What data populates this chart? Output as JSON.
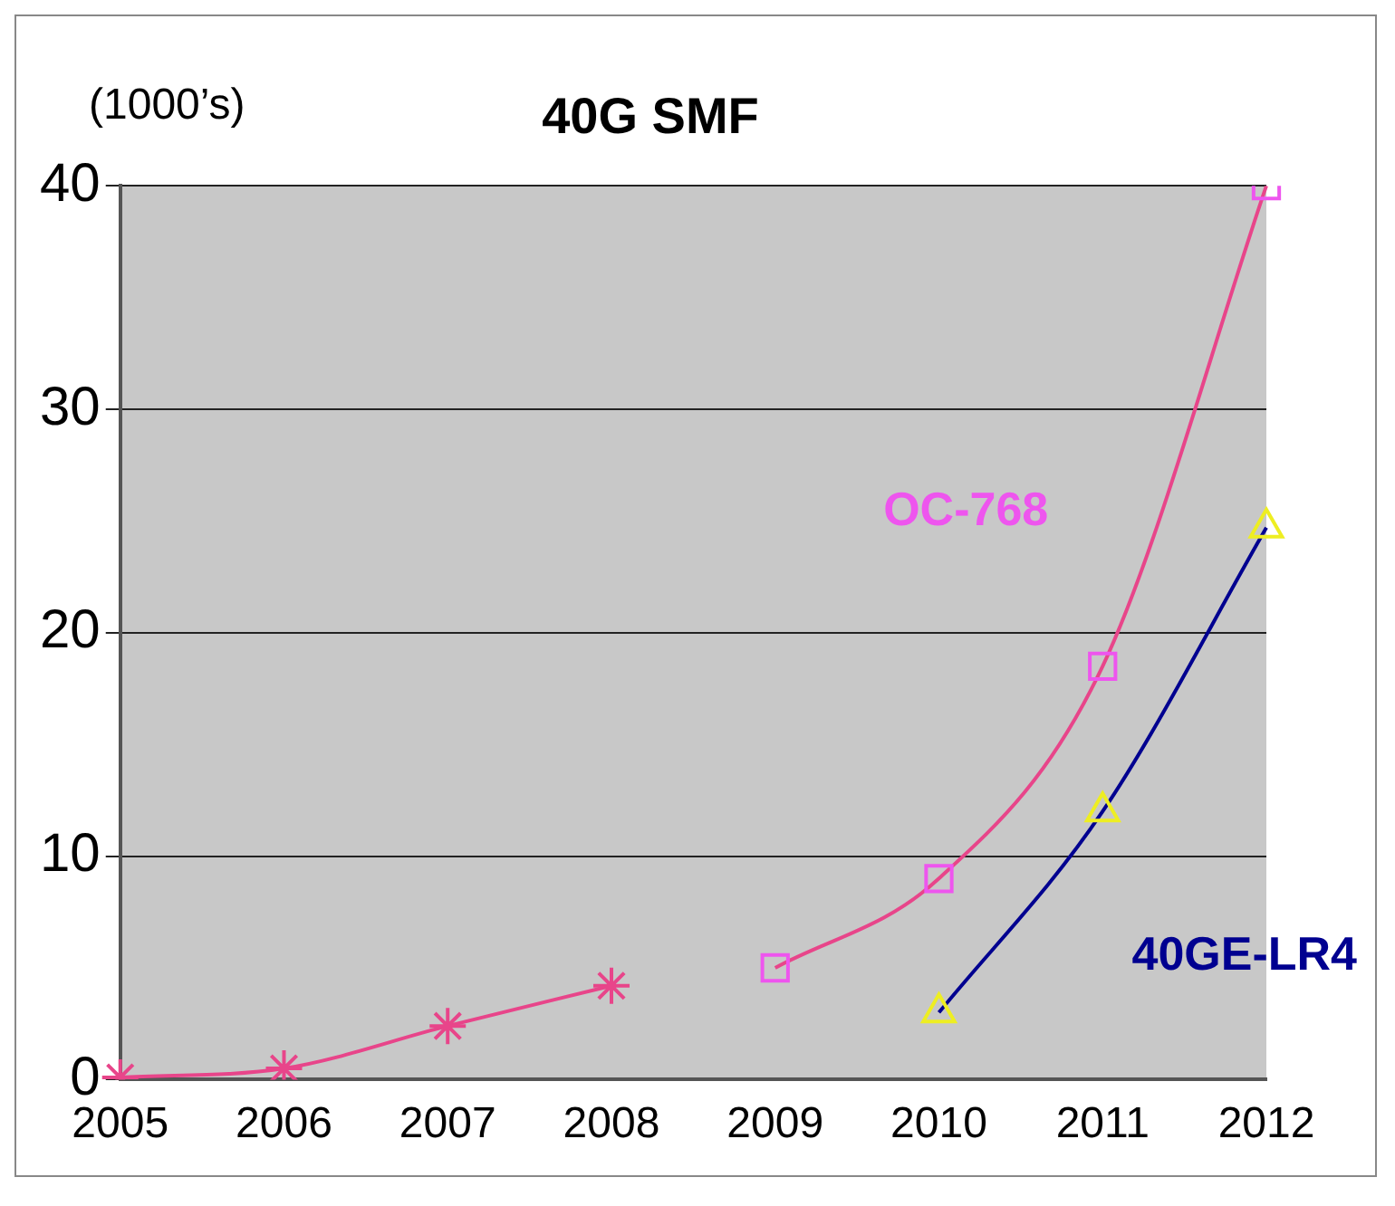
{
  "chart_data": {
    "type": "line",
    "title": "40G SMF",
    "ylabel": "(1000’s)",
    "categories": [
      "2005",
      "2006",
      "2007",
      "2008",
      "2009",
      "2010",
      "2011",
      "2012"
    ],
    "series": [
      {
        "color": "#e8458a",
        "marker": "cross",
        "values": [
          0.1,
          0.5,
          2.4,
          4.2,
          null,
          null,
          null,
          null
        ]
      },
      {
        "name": "OC-768",
        "color": "#e8458a",
        "colors": [
          null,
          null,
          null,
          null,
          "#ee55ee",
          "#ee55ee",
          "#ee55ee",
          "#ee55ee"
        ],
        "marker": "square",
        "values": [
          null,
          null,
          null,
          null,
          5.0,
          9.0,
          18.5,
          40
        ]
      },
      {
        "name": "40GE-LR4",
        "color": "#000090",
        "colors": [
          null,
          null,
          null,
          null,
          null,
          "#eeee22",
          "#eeee22",
          "#eeee22"
        ],
        "marker": "triangle",
        "values": [
          null,
          null,
          null,
          null,
          null,
          3.0,
          12.0,
          24.7
        ]
      }
    ],
    "ylim": [
      0,
      40
    ],
    "yticks": [
      0,
      10,
      20,
      30,
      40
    ],
    "grid": "y",
    "legend": false
  }
}
